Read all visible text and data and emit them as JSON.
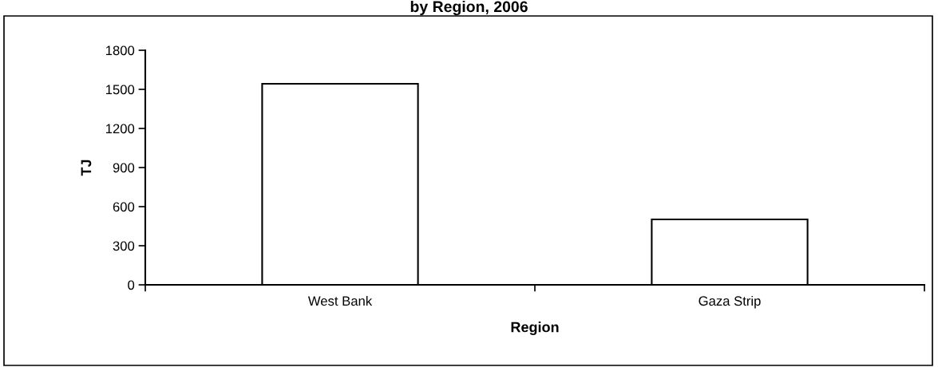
{
  "chart_data": {
    "type": "bar",
    "title": "by Region, 2006",
    "xlabel": "Region",
    "ylabel": "TJ",
    "categories": [
      "West Bank",
      "Gaza Strip"
    ],
    "values": [
      1543,
      502
    ],
    "color": "#ffffff",
    "ylim": [
      0,
      1800
    ],
    "yticks": [
      0,
      300,
      600,
      900,
      1200,
      1500,
      1800
    ],
    "grid": false,
    "legend": false
  }
}
